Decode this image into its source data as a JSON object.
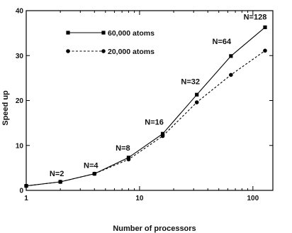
{
  "chart_data": {
    "type": "line",
    "xscale": "log2",
    "xlim": [
      1,
      150
    ],
    "ylim": [
      0,
      40
    ],
    "xticks": [
      1,
      10,
      100
    ],
    "yticks": [
      0,
      10,
      20,
      30,
      40
    ],
    "xlabel": "Number of processors",
    "ylabel": "Speed up",
    "grid": false,
    "legend_position": "top-left",
    "series": [
      {
        "name": "60,000 atoms",
        "style": "solid",
        "marker": "square",
        "color": "#000000",
        "x": [
          1,
          2,
          4,
          8,
          16,
          32,
          64,
          128
        ],
        "y": [
          1.0,
          1.9,
          3.7,
          7.3,
          12.6,
          21.3,
          29.9,
          36.3
        ]
      },
      {
        "name": "20,000 atoms",
        "style": "dashed",
        "marker": "circle",
        "color": "#000000",
        "x": [
          1,
          2,
          4,
          8,
          16,
          32,
          64,
          128
        ],
        "y": [
          1.0,
          1.9,
          3.7,
          6.9,
          12.1,
          19.6,
          25.7,
          31.1
        ]
      }
    ],
    "annotations": [
      {
        "text": "N=2",
        "x": 2,
        "y": 1.9
      },
      {
        "text": "N=4",
        "x": 4,
        "y": 3.7
      },
      {
        "text": "N=8",
        "x": 8,
        "y": 7.3
      },
      {
        "text": "N=16",
        "x": 16,
        "y": 12.6
      },
      {
        "text": "N=32",
        "x": 32,
        "y": 21.3
      },
      {
        "text": "N=64",
        "x": 64,
        "y": 29.9
      },
      {
        "text": "N=128",
        "x": 128,
        "y": 36.3
      }
    ]
  }
}
